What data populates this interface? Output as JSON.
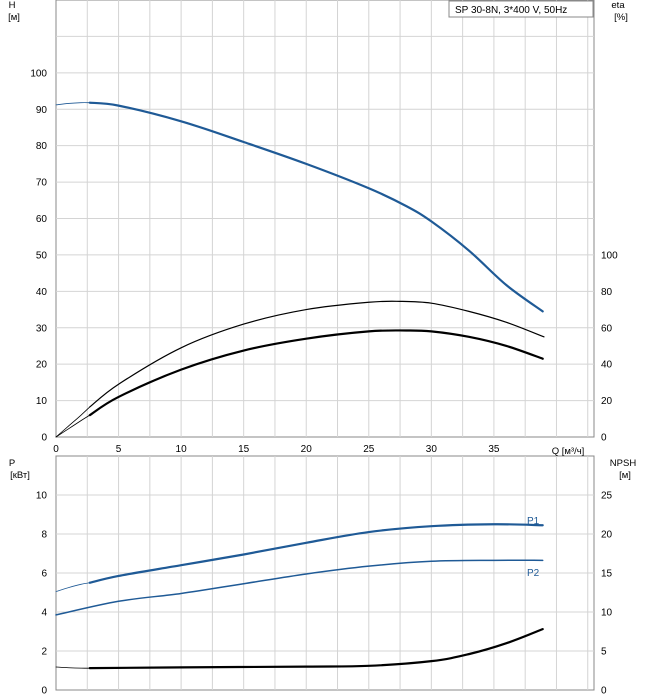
{
  "chart_data": {
    "type": "line",
    "legend": "SP 30-8N, 3*400 V, 50Hz",
    "colors": {
      "blue": "#1f5a96",
      "black": "#000000",
      "grid": "#d4d4d4",
      "frame": "#888888"
    },
    "top": {
      "x_label": "Q [м³/ч]",
      "x_ticks": [
        0,
        5,
        10,
        15,
        20,
        25,
        30,
        35
      ],
      "x_range": [
        0,
        43
      ],
      "y_left_label_1": "H",
      "y_left_label_2": "[м]",
      "y_left_ticks": [
        0,
        10,
        20,
        30,
        40,
        50,
        60,
        70,
        80,
        90,
        100
      ],
      "y_left_range": [
        0,
        120
      ],
      "y_right_label_1": "eta",
      "y_right_label_2": "[%]",
      "y_right_ticks": [
        0,
        20,
        40,
        60,
        80,
        100
      ],
      "y_right_range": [
        0,
        240
      ],
      "series": [
        {
          "name": "H",
          "axis": "left",
          "color": "blue",
          "width": 2.2,
          "x": [
            2.7,
            5,
            10,
            15,
            20,
            25,
            28,
            30,
            33,
            36,
            38.9
          ],
          "y": [
            91.8,
            91.0,
            86.7,
            81.0,
            75.0,
            68.3,
            63.4,
            59.2,
            51.2,
            41.7,
            34.5
          ]
        },
        {
          "name": "",
          "axis": "left",
          "color": "blue",
          "width": 0.8,
          "x": [
            0,
            1,
            2,
            2.7
          ],
          "y": [
            91.2,
            91.6,
            91.8,
            91.8
          ]
        },
        {
          "name": "eta",
          "axis": "right",
          "color": "black",
          "width": 1.2,
          "x": [
            2.7,
            5,
            10,
            15,
            20,
            25,
            27.5,
            30,
            33,
            36,
            39
          ],
          "y": [
            16.5,
            29,
            49,
            62,
            70,
            74,
            74.5,
            73.5,
            69,
            63,
            55
          ]
        },
        {
          "name": "",
          "axis": "right",
          "color": "black",
          "width": 0.8,
          "x": [
            0,
            1,
            2,
            2.7
          ],
          "y": [
            0,
            6,
            12,
            16.5
          ]
        },
        {
          "name": "",
          "axis": "right",
          "color": "black",
          "width": 2.2,
          "x": [
            2.7,
            5,
            10,
            15,
            20,
            25,
            28,
            30,
            33,
            36,
            38.9
          ],
          "y": [
            12,
            22,
            37,
            47.5,
            54,
            58,
            58.5,
            58,
            55,
            50,
            43
          ]
        },
        {
          "name": "",
          "axis": "right",
          "color": "black",
          "width": 0.8,
          "x": [
            0,
            1,
            2,
            2.7
          ],
          "y": [
            0,
            4.5,
            9,
            12
          ]
        }
      ]
    },
    "bottom": {
      "y_left_label_1": "P",
      "y_left_label_2": "[кВт]",
      "y_left_ticks": [
        0,
        2,
        4,
        6,
        8,
        10
      ],
      "y_left_range": [
        0,
        12
      ],
      "y_right_label_1": "NPSH",
      "y_right_label_2": "[м]",
      "y_right_ticks": [
        0,
        5,
        10,
        15,
        20,
        25
      ],
      "y_right_range": [
        0,
        30
      ],
      "series": [
        {
          "name": "P1",
          "axis": "left",
          "color": "blue",
          "width": 2.2,
          "x": [
            2.7,
            5,
            10,
            15,
            20,
            25,
            30,
            35,
            38.9
          ],
          "y": [
            5.5,
            5.85,
            6.4,
            6.95,
            7.55,
            8.1,
            8.4,
            8.5,
            8.45
          ]
        },
        {
          "name": "",
          "axis": "left",
          "color": "blue",
          "width": 0.8,
          "x": [
            0,
            1,
            2,
            2.7
          ],
          "y": [
            5.05,
            5.25,
            5.42,
            5.5
          ]
        },
        {
          "name": "P2",
          "axis": "left",
          "color": "blue",
          "width": 1.5,
          "x": [
            0,
            5,
            10,
            15,
            20,
            25,
            30,
            35,
            38.9
          ],
          "y": [
            3.85,
            4.55,
            4.95,
            5.45,
            5.95,
            6.35,
            6.6,
            6.65,
            6.65
          ]
        },
        {
          "name": "NPSH",
          "axis": "right",
          "color": "black",
          "width": 2.2,
          "x": [
            2.7,
            10,
            20,
            25,
            30,
            33,
            36,
            38.9
          ],
          "y": [
            2.8,
            2.9,
            3.0,
            3.1,
            3.7,
            4.6,
            6.0,
            7.8
          ]
        },
        {
          "name": "",
          "axis": "right",
          "color": "black",
          "width": 0.8,
          "x": [
            0,
            1,
            2,
            2.7
          ],
          "y": [
            2.95,
            2.85,
            2.8,
            2.8
          ]
        }
      ]
    }
  }
}
